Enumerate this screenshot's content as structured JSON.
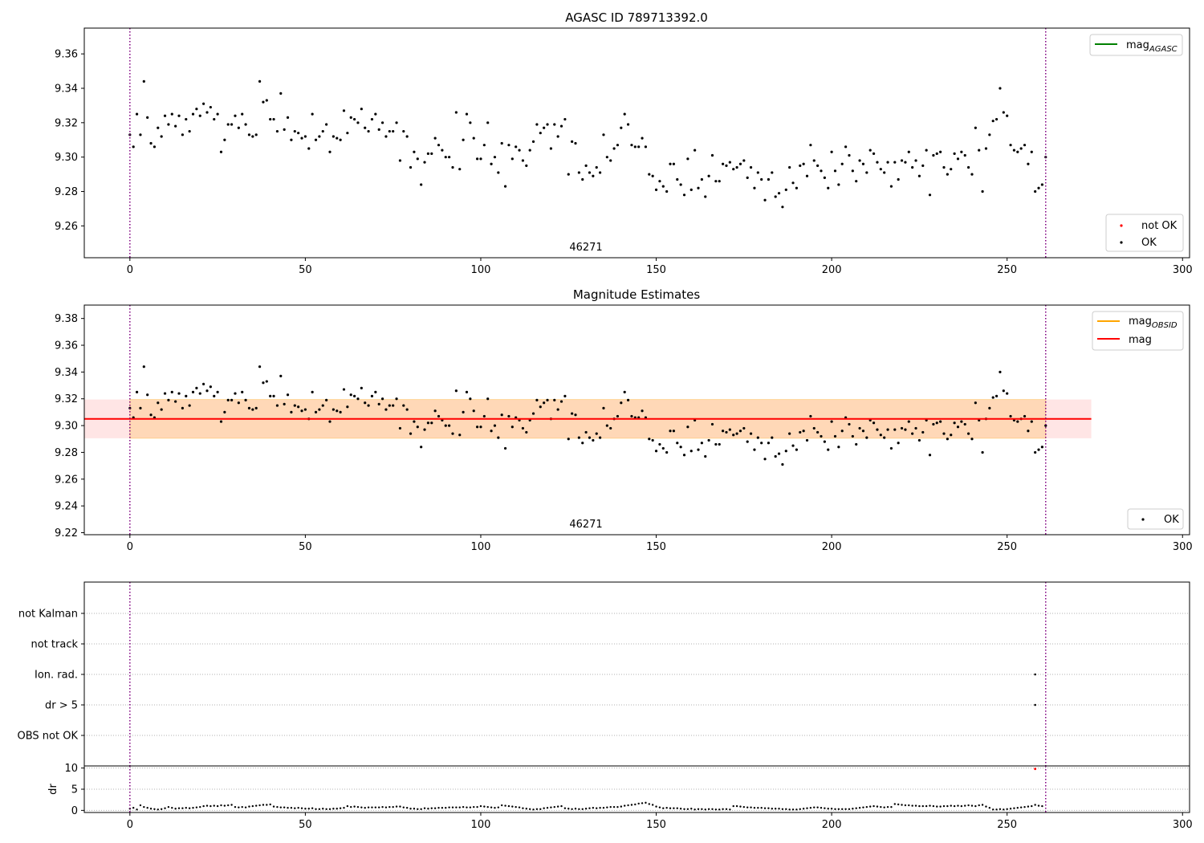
{
  "chart_data": [
    {
      "type": "scatter",
      "title": "AGASC ID 789713392.0",
      "xlim": [
        -13,
        302
      ],
      "ylim": [
        9.2415,
        9.375
      ],
      "xticks": [
        0,
        50,
        100,
        150,
        200,
        250,
        300
      ],
      "xtick_labels": [
        "0",
        "50",
        "100",
        "150",
        "200",
        "250",
        "300"
      ],
      "yticks": [
        9.26,
        9.28,
        9.3,
        9.32,
        9.34,
        9.36
      ],
      "ytick_labels": [
        "9.26",
        "9.28",
        "9.30",
        "9.32",
        "9.34",
        "9.36"
      ],
      "vlines": [
        0,
        261
      ],
      "obsid_label": {
        "text": "46271",
        "x": 130.5
      },
      "legend_lines": [
        {
          "label": "mag",
          "sub": "AGASC",
          "color": "#008000"
        }
      ],
      "legend_points": [
        {
          "label": "not OK",
          "color": "#ff0000"
        },
        {
          "label": "OK",
          "color": "#000000"
        }
      ]
    },
    {
      "type": "scatter",
      "title": "Magnitude Estimates",
      "xlim": [
        -13,
        302
      ],
      "ylim": [
        9.2185,
        9.39
      ],
      "xticks": [
        0,
        50,
        100,
        150,
        200,
        250,
        300
      ],
      "xtick_labels": [
        "0",
        "50",
        "100",
        "150",
        "200",
        "250",
        "300"
      ],
      "yticks": [
        9.22,
        9.24,
        9.26,
        9.28,
        9.3,
        9.32,
        9.34,
        9.36,
        9.38
      ],
      "ytick_labels": [
        "9.22",
        "9.24",
        "9.26",
        "9.28",
        "9.30",
        "9.32",
        "9.34",
        "9.36",
        "9.38"
      ],
      "vlines": [
        0,
        261
      ],
      "mag": 9.305,
      "mag_band": [
        9.2905,
        9.3195
      ],
      "mag_band_xrange": [
        -13,
        274
      ],
      "obsid_band_xrange": [
        0,
        261
      ],
      "obsid_label": {
        "text": "46271",
        "x": 130.5
      },
      "legend_lines": [
        {
          "label": "mag",
          "sub": "OBSID",
          "color": "#ffa500"
        },
        {
          "label": "mag",
          "sub": "",
          "color": "#ff0000"
        }
      ],
      "legend_points": [
        {
          "label": "OK",
          "color": "#000000"
        }
      ]
    },
    {
      "type": "scatter",
      "categories": [
        "not Kalman",
        "not track",
        "Ion. rad.",
        "dr > 5",
        "OBS not OK"
      ],
      "flags": [
        {
          "category": "Ion. rad.",
          "x": [
            258
          ]
        },
        {
          "category": "dr > 5",
          "x": [
            258
          ]
        }
      ],
      "xlim": [
        -13,
        302
      ],
      "vlines": [
        0,
        261
      ]
    },
    {
      "type": "scatter",
      "ylabel": "dr",
      "xlim": [
        -13,
        302
      ],
      "ylim": [
        -0.5,
        10.5
      ],
      "yticks": [
        0,
        5,
        10
      ],
      "ytick_labels": [
        "0",
        "5",
        "10"
      ],
      "xticks": [
        0,
        50,
        100,
        150,
        200,
        250,
        300
      ],
      "xtick_labels": [
        "0",
        "50",
        "100",
        "150",
        "200",
        "250",
        "300"
      ],
      "vlines": [
        0,
        261
      ],
      "outlier": {
        "x": 258,
        "y": 9.8,
        "color": "#ff0000"
      }
    }
  ],
  "mag_series": {
    "x_start": 0,
    "values": [
      9.313,
      9.306,
      9.325,
      9.313,
      9.344,
      9.323,
      9.308,
      9.306,
      9.317,
      9.312,
      9.324,
      9.319,
      9.325,
      9.318,
      9.324,
      9.313,
      9.322,
      9.315,
      9.325,
      9.328,
      9.324,
      9.331,
      9.326,
      9.329,
      9.322,
      9.325,
      9.303,
      9.31,
      9.319,
      9.319,
      9.324,
      9.317,
      9.325,
      9.319,
      9.313,
      9.312,
      9.313,
      9.344,
      9.332,
      9.333,
      9.322,
      9.322,
      9.315,
      9.337,
      9.316,
      9.323,
      9.31,
      9.315,
      9.314,
      9.311,
      9.312,
      9.305,
      9.325,
      9.31,
      9.312,
      9.315,
      9.319,
      9.303,
      9.312,
      9.311,
      9.31,
      9.327,
      9.314,
      9.323,
      9.322,
      9.32,
      9.328,
      9.317,
      9.315,
      9.322,
      9.325,
      9.316,
      9.32,
      9.312,
      9.315,
      9.315,
      9.32,
      9.298,
      9.315,
      9.312,
      9.294,
      9.303,
      9.299,
      9.284,
      9.297,
      9.302,
      9.302,
      9.311,
      9.307,
      9.304,
      9.3,
      9.3,
      9.294,
      9.326,
      9.293,
      9.31,
      9.325,
      9.32,
      9.311,
      9.299,
      9.299,
      9.307,
      9.32,
      9.296,
      9.3,
      9.291,
      9.308,
      9.283,
      9.307,
      9.299,
      9.306,
      9.304,
      9.298,
      9.295,
      9.304,
      9.309,
      9.319,
      9.314,
      9.317,
      9.319,
      9.305,
      9.319,
      9.312,
      9.318,
      9.322,
      9.29,
      9.309,
      9.308,
      9.291,
      9.287,
      9.295,
      9.291,
      9.289,
      9.294,
      9.291,
      9.313,
      9.3,
      9.298,
      9.305,
      9.307,
      9.317,
      9.325,
      9.319,
      9.307,
      9.306,
      9.306,
      9.311,
      9.306,
      9.29,
      9.289,
      9.281,
      9.286,
      9.283,
      9.28,
      9.296,
      9.296,
      9.287,
      9.284,
      9.278,
      9.299,
      9.281,
      9.304,
      9.282,
      9.287,
      9.277,
      9.289,
      9.301,
      9.286,
      9.286,
      9.296,
      9.295,
      9.297,
      9.293,
      9.294,
      9.296,
      9.298,
      9.288,
      9.294,
      9.282,
      9.291,
      9.287,
      9.275,
      9.287,
      9.291,
      9.277,
      9.279,
      9.271,
      9.281,
      9.294,
      9.285,
      9.282,
      9.295,
      9.296,
      9.289,
      9.307,
      9.298,
      9.295,
      9.292,
      9.288,
      9.282,
      9.303,
      9.292,
      9.284,
      9.296,
      9.306,
      9.301,
      9.292,
      9.286,
      9.298,
      9.296,
      9.291,
      9.304,
      9.302,
      9.297,
      9.293,
      9.291,
      9.297,
      9.283,
      9.297,
      9.287,
      9.298,
      9.297,
      9.303,
      9.294,
      9.298,
      9.289,
      9.295,
      9.304,
      9.278,
      9.301,
      9.302,
      9.303,
      9.294,
      9.29,
      9.293,
      9.302,
      9.299,
      9.303,
      9.301,
      9.294,
      9.29,
      9.317,
      9.304,
      9.28,
      9.305,
      9.313,
      9.321,
      9.322,
      9.34,
      9.326,
      9.324,
      9.307,
      9.304,
      9.303,
      9.305,
      9.307,
      9.296,
      9.303,
      9.28,
      9.282,
      9.284,
      9.3
    ]
  },
  "dr_series": {
    "x_start": 0,
    "values": [
      0.4,
      0.6,
      0.2,
      1.2,
      0.8,
      0.6,
      0.4,
      0.3,
      0.2,
      0.3,
      0.5,
      0.8,
      0.6,
      0.4,
      0.5,
      0.5,
      0.6,
      0.5,
      0.6,
      0.7,
      0.8,
      1.0,
      1.1,
      1.0,
      1.1,
      1.0,
      1.2,
      1.1,
      1.2,
      1.3,
      0.8,
      0.7,
      0.8,
      0.7,
      0.9,
      1.0,
      1.1,
      1.2,
      1.3,
      1.3,
      1.4,
      0.9,
      0.8,
      0.7,
      0.7,
      0.6,
      0.6,
      0.5,
      0.6,
      0.5,
      0.4,
      0.4,
      0.5,
      0.3,
      0.3,
      0.4,
      0.3,
      0.3,
      0.4,
      0.4,
      0.5,
      0.6,
      1.0,
      0.8,
      0.9,
      0.8,
      0.7,
      0.6,
      0.7,
      0.7,
      0.7,
      0.7,
      0.8,
      0.7,
      0.8,
      0.8,
      0.9,
      0.9,
      0.7,
      0.6,
      0.4,
      0.4,
      0.3,
      0.3,
      0.5,
      0.4,
      0.5,
      0.5,
      0.6,
      0.6,
      0.6,
      0.7,
      0.7,
      0.7,
      0.7,
      0.8,
      0.7,
      0.7,
      0.8,
      0.8,
      1.0,
      0.9,
      0.8,
      0.7,
      0.6,
      0.7,
      1.2,
      1.1,
      1.0,
      0.9,
      0.8,
      0.7,
      0.5,
      0.4,
      0.3,
      0.2,
      0.3,
      0.3,
      0.5,
      0.6,
      0.7,
      0.8,
      0.9,
      1.0,
      0.5,
      0.4,
      0.3,
      0.4,
      0.3,
      0.3,
      0.4,
      0.5,
      0.6,
      0.5,
      0.6,
      0.6,
      0.7,
      0.8,
      0.8,
      0.8,
      0.9,
      1.1,
      1.2,
      1.3,
      1.4,
      1.6,
      1.7,
      1.8,
      1.5,
      1.3,
      0.9,
      0.7,
      0.5,
      0.6,
      0.5,
      0.5,
      0.5,
      0.4,
      0.3,
      0.3,
      0.4,
      0.2,
      0.3,
      0.3,
      0.2,
      0.3,
      0.3,
      0.2,
      0.2,
      0.3,
      0.3,
      0.2,
      1.0,
      1.0,
      0.9,
      0.8,
      0.7,
      0.7,
      0.6,
      0.6,
      0.6,
      0.5,
      0.5,
      0.4,
      0.4,
      0.4,
      0.3,
      0.3,
      0.2,
      0.2,
      0.2,
      0.3,
      0.4,
      0.5,
      0.6,
      0.7,
      0.7,
      0.6,
      0.5,
      0.4,
      0.4,
      0.3,
      0.3,
      0.3,
      0.3,
      0.3,
      0.4,
      0.5,
      0.6,
      0.7,
      0.8,
      0.9,
      1.0,
      0.9,
      0.8,
      0.7,
      0.8,
      0.8,
      1.5,
      1.4,
      1.3,
      1.2,
      1.2,
      1.1,
      1.1,
      1.0,
      1.0,
      1.0,
      1.1,
      1.0,
      0.9,
      0.9,
      1.0,
      1.0,
      1.1,
      1.0,
      1.1,
      1.0,
      1.1,
      1.2,
      1.1,
      1.0,
      1.2,
      1.3,
      0.9,
      0.6,
      0.2,
      0.2,
      0.3,
      0.2,
      0.3,
      0.4,
      0.5,
      0.6,
      0.7,
      0.8,
      0.9,
      1.0,
      1.3,
      1.1,
      1.0
    ]
  }
}
